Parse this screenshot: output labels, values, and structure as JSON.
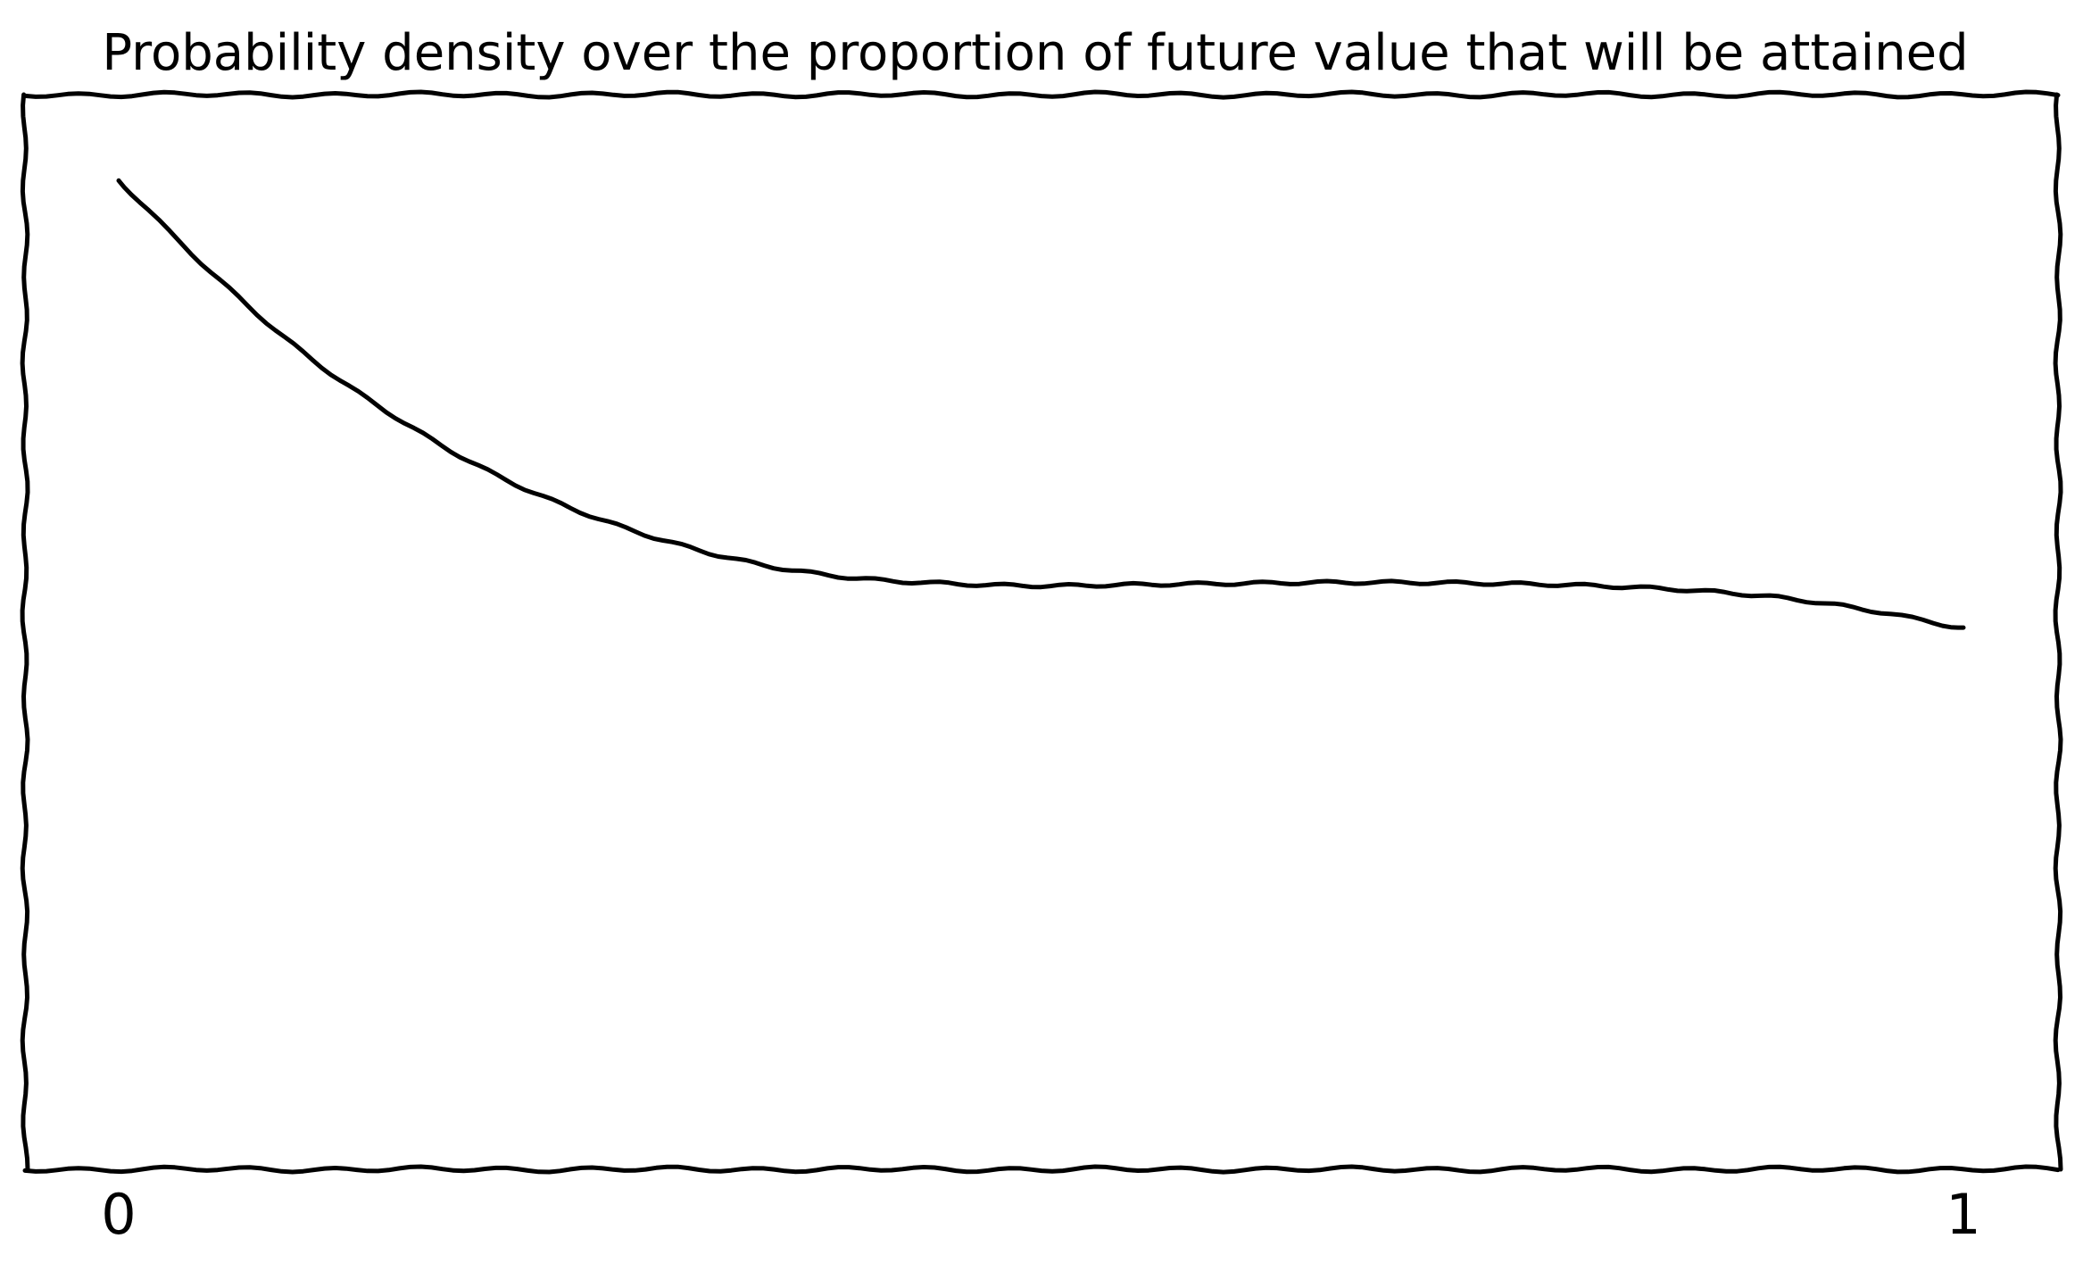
{
  "chart_data": {
    "type": "line",
    "title": "Probability density over the proportion of future value that will be attained",
    "xlabel": "",
    "ylabel": "",
    "xlim": [
      0,
      1
    ],
    "ylim": [
      0,
      1
    ],
    "grid": false,
    "legend": "none",
    "x_ticks": [
      {
        "value": 0,
        "label": "0"
      },
      {
        "value": 1,
        "label": "1"
      }
    ],
    "line_color": "#000000",
    "series": [
      {
        "x": [
          0.0,
          0.05,
          0.1,
          0.15,
          0.2,
          0.25,
          0.3,
          0.35,
          0.4,
          0.45,
          0.5,
          0.55,
          0.6,
          0.65,
          0.7,
          0.75,
          0.8,
          0.85,
          0.9,
          0.95,
          1.0
        ],
        "values": [
          0.92,
          0.835,
          0.76,
          0.7,
          0.65,
          0.612,
          0.583,
          0.562,
          0.55,
          0.545,
          0.543,
          0.544,
          0.545,
          0.546,
          0.546,
          0.545,
          0.543,
          0.539,
          0.532,
          0.52,
          0.503
        ]
      }
    ]
  }
}
